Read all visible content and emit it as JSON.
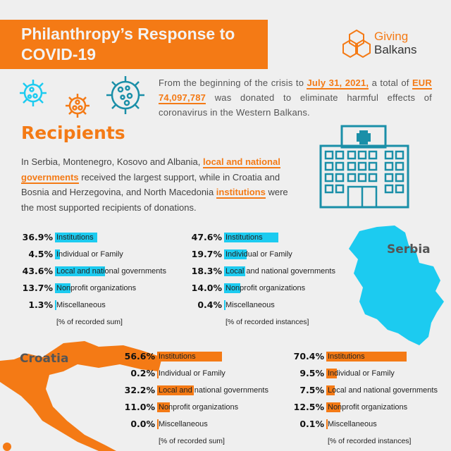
{
  "header": {
    "title_line1": "Philanthropy’s Response to",
    "title_line2": "COVID-19"
  },
  "logo": {
    "word1": "Giving",
    "word2": "Balkans"
  },
  "intro": {
    "part1": "From the beginning of the crisis to ",
    "date": "July 31, 2021,",
    "part2": " a total of ",
    "amount": "EUR 74,097,787",
    "part3": "  was donated to eliminate harmful effects of coronavirus in the Western Balkans."
  },
  "recipients": {
    "title": "Recipients",
    "p1": "In Serbia, Montenegro, Kosovo and Albania, ",
    "h1": "local and national governments",
    "p2": " received the largest support, while in Croatia and Bosnia and Herzegovina, and North Macedonia ",
    "h2": "institutions",
    "p3": " were the most supported recipients of donations."
  },
  "colors": {
    "orange": "#f47a15",
    "cyan": "#1ccbf0",
    "teal": "#1a8fa8"
  },
  "maps": {
    "serbia": "Serbia",
    "croatia": "Croatia"
  },
  "chart_data": [
    {
      "type": "bar",
      "country": "Serbia",
      "footnote": "[% of recorded sum]",
      "categories": [
        "Institutions",
        "Individual or Family",
        "Local and national governments",
        "Nonprofit organizations",
        "Miscellaneous"
      ],
      "values": [
        36.9,
        4.5,
        43.6,
        13.7,
        1.3
      ],
      "labels": [
        "36.9%",
        "4.5%",
        "43.6%",
        "13.7%",
        "1.3%"
      ],
      "color": "#1ccbf0"
    },
    {
      "type": "bar",
      "country": "Serbia",
      "footnote": "[% of recorded instances]",
      "categories": [
        "Institutions",
        "Individual or Family",
        "Local and national governments",
        "Nonprofit organizations",
        "Miscellaneous"
      ],
      "values": [
        47.6,
        19.7,
        18.3,
        14.0,
        0.4
      ],
      "labels": [
        "47.6%",
        "19.7%",
        "18.3%",
        "14.0%",
        "0.4%"
      ],
      "color": "#1ccbf0"
    },
    {
      "type": "bar",
      "country": "Croatia",
      "footnote": "[% of recorded sum]",
      "categories": [
        "Institutions",
        "Individual or Family",
        "Local and national governments",
        "Nonprofit organizations",
        "Miscellaneous"
      ],
      "values": [
        56.6,
        0.2,
        32.2,
        11.0,
        0.0
      ],
      "labels": [
        "56.6%",
        "0.2%",
        "32.2%",
        "11.0%",
        "0.0%"
      ],
      "color": "#f47a15"
    },
    {
      "type": "bar",
      "country": "Croatia",
      "footnote": "[% of recorded instances]",
      "categories": [
        "Institutions",
        "Individual or Family",
        "Local and national governments",
        "Nonprofit organizations",
        "Miscellaneous"
      ],
      "values": [
        70.4,
        9.5,
        7.5,
        12.5,
        0.1
      ],
      "labels": [
        "70.4%",
        "9.5%",
        "7.5%",
        "12.5%",
        "0.1%"
      ],
      "color": "#f47a15"
    }
  ]
}
